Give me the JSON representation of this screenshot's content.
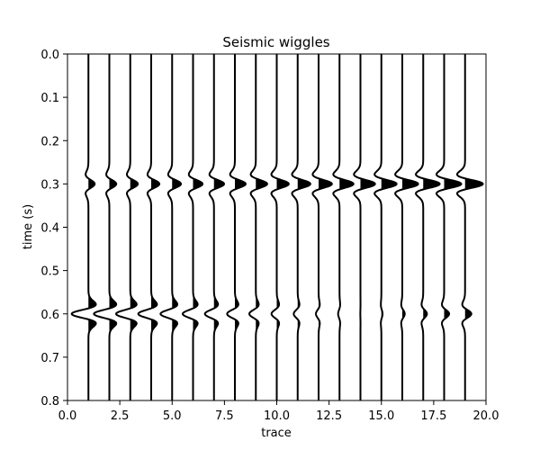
{
  "chart_data": {
    "type": "line",
    "title": "Seismic wiggles",
    "xlabel": "trace",
    "ylabel": "time (s)",
    "xlim": [
      0.0,
      20.0
    ],
    "ylim": [
      0.8,
      0.0
    ],
    "y_inverted": true,
    "grid": false,
    "x_ticks": [
      {
        "value": 0.0,
        "label": "0.0"
      },
      {
        "value": 2.5,
        "label": "2.5"
      },
      {
        "value": 5.0,
        "label": "5.0"
      },
      {
        "value": 7.5,
        "label": "7.5"
      },
      {
        "value": 10.0,
        "label": "10.0"
      },
      {
        "value": 12.5,
        "label": "12.5"
      },
      {
        "value": 15.0,
        "label": "15.0"
      },
      {
        "value": 17.5,
        "label": "17.5"
      },
      {
        "value": 20.0,
        "label": "20.0"
      }
    ],
    "y_ticks": [
      {
        "value": 0.0,
        "label": "0.0"
      },
      {
        "value": 0.1,
        "label": "0.1"
      },
      {
        "value": 0.2,
        "label": "0.2"
      },
      {
        "value": 0.3,
        "label": "0.3"
      },
      {
        "value": 0.4,
        "label": "0.4"
      },
      {
        "value": 0.5,
        "label": "0.5"
      },
      {
        "value": 0.6,
        "label": "0.6"
      },
      {
        "value": 0.7,
        "label": "0.7"
      },
      {
        "value": 0.8,
        "label": "0.8"
      }
    ],
    "trace_offsets": [
      1,
      2,
      3,
      4,
      5,
      6,
      7,
      8,
      9,
      10,
      11,
      12,
      13,
      14,
      15,
      16,
      17,
      18,
      19
    ],
    "time_range": [
      0.0,
      0.8
    ],
    "events": [
      {
        "time": 0.3,
        "amplitude_first": 0.3,
        "amplitude_last": 0.85,
        "polarity": 1
      },
      {
        "time": 0.6,
        "amplitude_first": -0.8,
        "amplitude_last": 0.3,
        "polarity": -1
      }
    ],
    "wavelet_width_s": 0.018,
    "line_color": "#000000",
    "fill_color": "#000000",
    "fill": "positive"
  }
}
